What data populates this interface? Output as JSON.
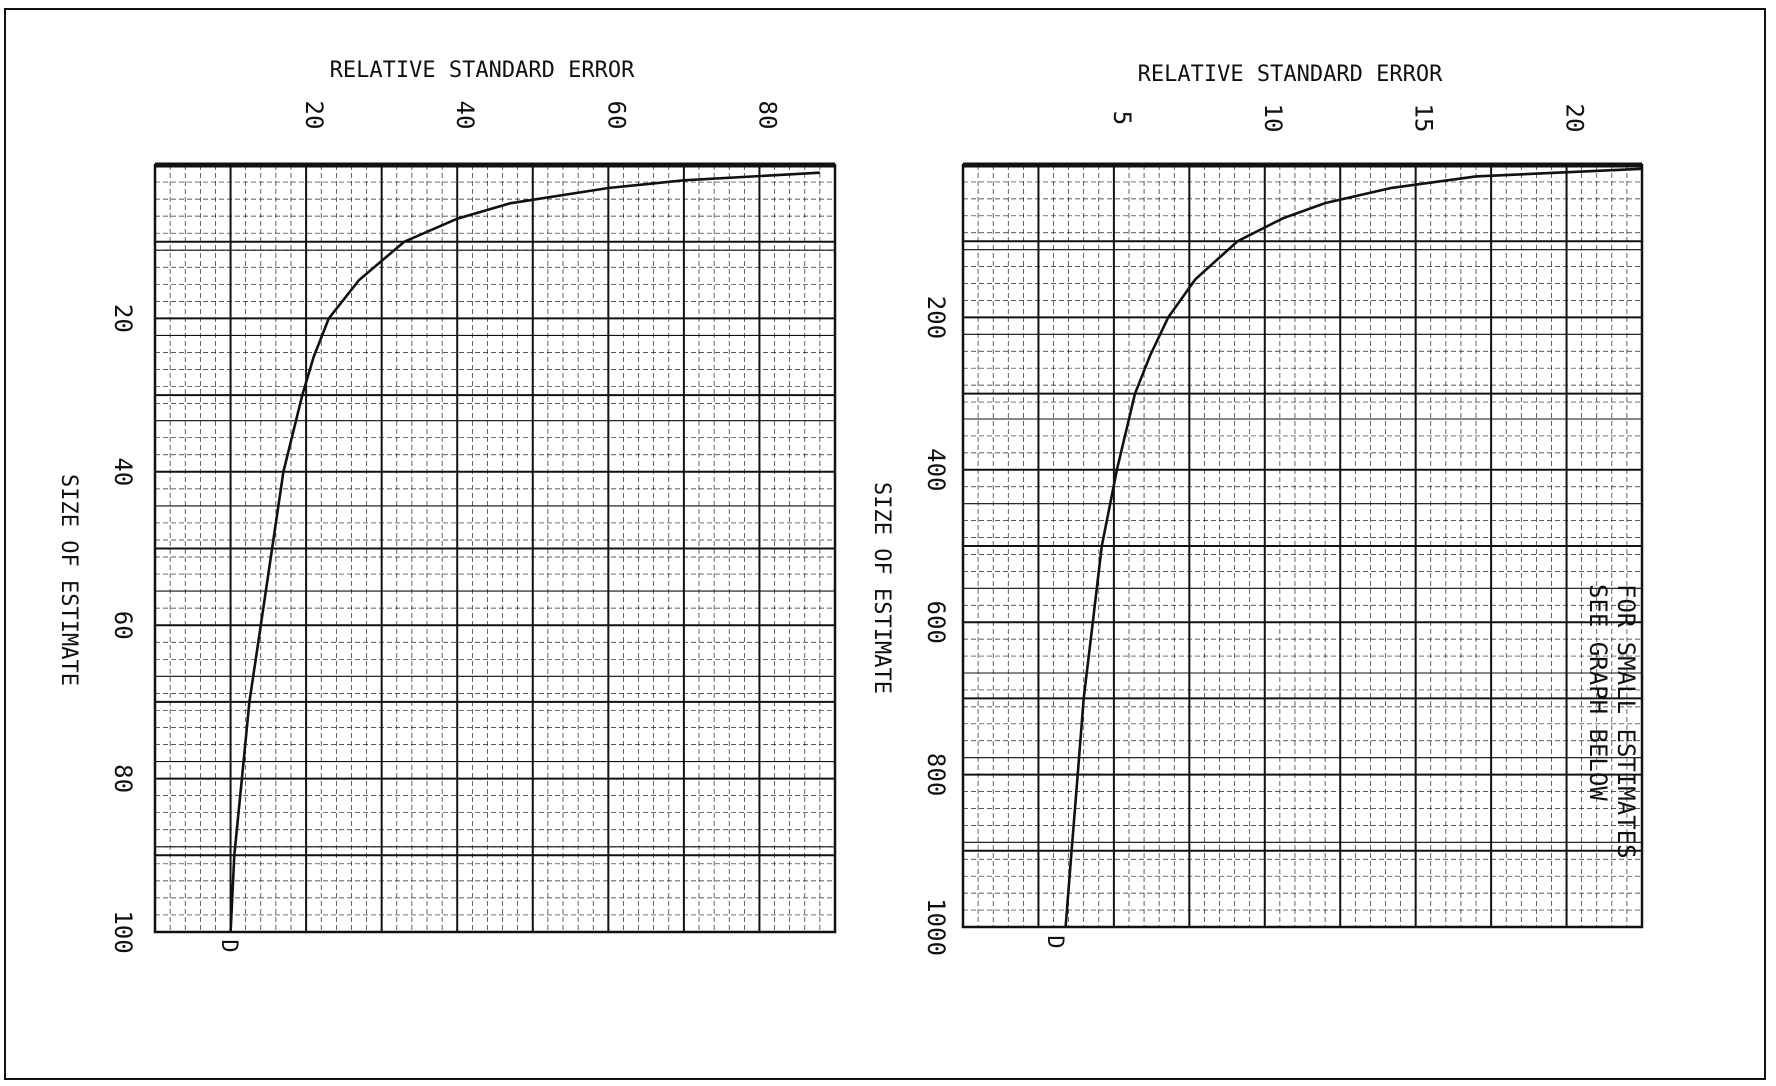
{
  "colors": {
    "ink": "#111111",
    "paper": "#ffffff"
  },
  "chart_data": [
    {
      "type": "line",
      "title": "",
      "xlabel": "SIZE OF ESTIMATE",
      "ylabel": "RELATIVE STANDARD ERROR",
      "xlim": [
        0,
        100
      ],
      "ylim": [
        0,
        90
      ],
      "x_ticks": [
        "20",
        "40",
        "60",
        "80",
        "100"
      ],
      "y_ticks": [
        "20",
        "40",
        "60",
        "80"
      ],
      "origin_label": "D",
      "grid": true,
      "x": [
        1,
        2,
        3,
        5,
        7,
        10,
        15,
        20,
        25,
        30,
        40,
        50,
        60,
        70,
        80,
        90,
        100
      ],
      "y": [
        88,
        70,
        60,
        47,
        40,
        33,
        27,
        23,
        21,
        19.5,
        17,
        15.5,
        14,
        12.5,
        11.5,
        10.5,
        10
      ]
    },
    {
      "type": "line",
      "title": "",
      "xlabel": "SIZE OF ESTIMATE",
      "ylabel": "RELATIVE STANDARD ERROR",
      "xlim": [
        0,
        1000
      ],
      "ylim": [
        0,
        22.5
      ],
      "x_ticks": [
        "200",
        "400",
        "600",
        "800",
        "1000"
      ],
      "y_ticks": [
        "5",
        "10",
        "15",
        "20"
      ],
      "origin_label": "D",
      "annotation_lines": [
        "FOR SMALL ESTIMATES",
        "SEE GRAPH BELOW"
      ],
      "grid": true,
      "x": [
        5,
        15,
        30,
        50,
        70,
        100,
        150,
        200,
        250,
        300,
        400,
        500,
        600,
        700,
        800,
        900,
        1000
      ],
      "y": [
        22.5,
        17,
        14.2,
        12,
        10.6,
        9.1,
        7.7,
        6.8,
        6.2,
        5.7,
        5.1,
        4.6,
        4.3,
        4.0,
        3.8,
        3.6,
        3.4
      ]
    }
  ]
}
